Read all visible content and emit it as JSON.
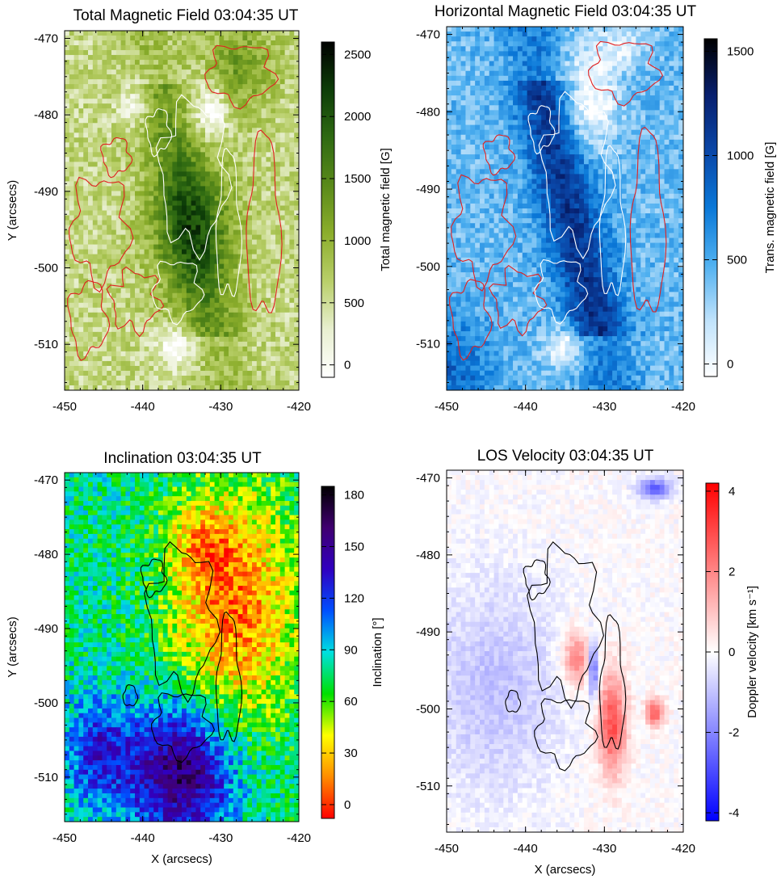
{
  "chart_data": [
    {
      "type": "heatmap",
      "panel": "total-field",
      "title": "Total Magnetic Field 03:04:35 UT",
      "xlabel": "",
      "ylabel": "Y (arcsecs)",
      "xlim": [
        -450,
        -420
      ],
      "ylim": [
        -516,
        -469
      ],
      "x_ticks": [
        "-450",
        "-440",
        "-430",
        "-420"
      ],
      "x_tick_values": [
        -450,
        -440,
        -430,
        -420
      ],
      "y_ticks": [
        "-470",
        "-480",
        "-490",
        "-500",
        "-510"
      ],
      "y_tick_values": [
        -470,
        -480,
        -490,
        -500,
        -510
      ],
      "colorbar": {
        "label": "Total magnetic field [G]",
        "range": [
          -100,
          2600
        ],
        "ticks": [
          "0",
          "500",
          "1000",
          "1500",
          "2000",
          "2500"
        ],
        "tick_values": [
          0,
          500,
          1000,
          1500,
          2000,
          2500
        ],
        "colors": [
          "#ffffff",
          "#e8efd0",
          "#b9cf6a",
          "#8cae2c",
          "#5a8a1a",
          "#2f6a12",
          "#0d3d08",
          "#000000"
        ]
      },
      "contour_colors": [
        "#e02020",
        "#ffffff"
      ]
    },
    {
      "type": "heatmap",
      "panel": "horizontal-field",
      "title": "Horizontal Magnetic Field 03:04:35 UT",
      "xlabel": "",
      "ylabel": "",
      "xlim": [
        -450,
        -420
      ],
      "ylim": [
        -516,
        -469
      ],
      "x_ticks": [
        "-450",
        "-440",
        "-430",
        "-420"
      ],
      "x_tick_values": [
        -450,
        -440,
        -430,
        -420
      ],
      "y_ticks": [
        "-470",
        "-480",
        "-490",
        "-500",
        "-510"
      ],
      "y_tick_values": [
        -470,
        -480,
        -490,
        -500,
        -510
      ],
      "colorbar": {
        "label": "Trans. magnetic field [G]",
        "range": [
          -60,
          1560
        ],
        "ticks": [
          "0",
          "500",
          "1000",
          "1500"
        ],
        "tick_values": [
          0,
          500,
          1000,
          1500
        ],
        "colors": [
          "#ffffff",
          "#bfe2fb",
          "#4fb0f0",
          "#0a78d8",
          "#0a47a8",
          "#071f6e",
          "#000000"
        ]
      },
      "contour_colors": [
        "#e02020",
        "#ffffff"
      ]
    },
    {
      "type": "heatmap",
      "panel": "inclination",
      "title": "Inclination 03:04:35 UT",
      "xlabel": "X (arcsecs)",
      "ylabel": "Y (arcsecs)",
      "xlim": [
        -450,
        -420
      ],
      "ylim": [
        -516,
        -469
      ],
      "x_ticks": [
        "-450",
        "-440",
        "-430",
        "-420"
      ],
      "x_tick_values": [
        -450,
        -440,
        -430,
        -420
      ],
      "y_ticks": [
        "-470",
        "-480",
        "-490",
        "-500",
        "-510"
      ],
      "y_tick_values": [
        -470,
        -480,
        -490,
        -500,
        -510
      ],
      "colorbar": {
        "label": "Inclination [°]",
        "range": [
          -8,
          185
        ],
        "ticks": [
          "0",
          "30",
          "60",
          "90",
          "120",
          "150",
          "180"
        ],
        "tick_values": [
          0,
          30,
          60,
          90,
          120,
          150,
          180
        ],
        "colors": [
          "#ff0000",
          "#ff8c00",
          "#ffff00",
          "#00e000",
          "#00e0e0",
          "#0050ff",
          "#3000c0",
          "#400070",
          "#000000"
        ]
      },
      "contour_colors": [
        "#000000"
      ]
    },
    {
      "type": "heatmap",
      "panel": "los-velocity",
      "title": "LOS Velocity 03:04:35 UT",
      "xlabel": "X (arcsecs)",
      "ylabel": "",
      "xlim": [
        -450,
        -420
      ],
      "ylim": [
        -516,
        -469
      ],
      "x_ticks": [
        "-450",
        "-440",
        "-430",
        "-420"
      ],
      "x_tick_values": [
        -450,
        -440,
        -430,
        -420
      ],
      "y_ticks": [
        "-470",
        "-480",
        "-490",
        "-500",
        "-510"
      ],
      "y_tick_values": [
        -470,
        -480,
        -490,
        -500,
        -510
      ],
      "colorbar": {
        "label": "Doppler velocity [km s⁻¹]",
        "range": [
          -4.2,
          4.2
        ],
        "ticks": [
          "-4",
          "-2",
          "0",
          "2",
          "4"
        ],
        "tick_values": [
          -4,
          -2,
          0,
          2,
          4
        ],
        "colors": [
          "#0000ff",
          "#8080ff",
          "#ffffff",
          "#ff8080",
          "#ff0000"
        ]
      },
      "contour_colors": [
        "#000000"
      ]
    }
  ]
}
